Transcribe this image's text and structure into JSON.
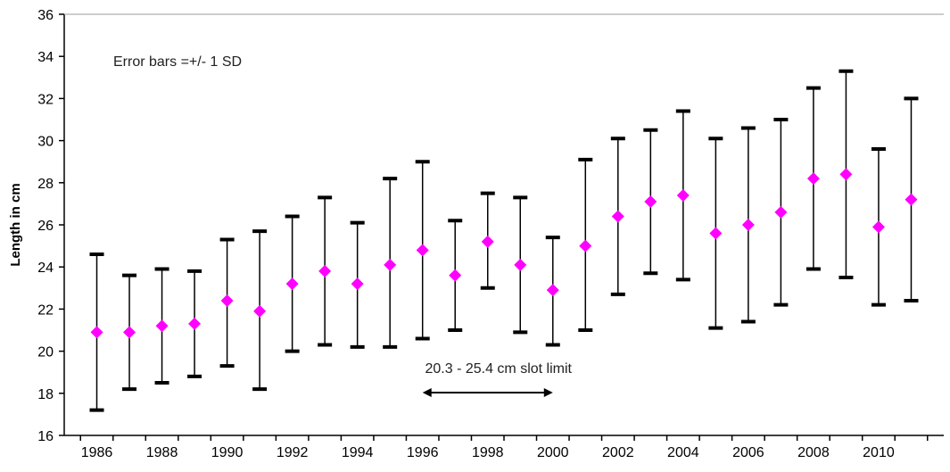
{
  "chart_data": {
    "type": "scatter",
    "ylabel": "Length in cm",
    "xlabel": "",
    "ylim": [
      16,
      36
    ],
    "yticks": [
      16,
      18,
      20,
      22,
      24,
      26,
      28,
      30,
      32,
      34,
      36
    ],
    "xtick_labels": [
      "1986",
      "1988",
      "1990",
      "1992",
      "1994",
      "1996",
      "1998",
      "2000",
      "2002",
      "2004",
      "2006",
      "2008",
      "2010"
    ],
    "grid": false,
    "x": [
      1986,
      1987,
      1988,
      1989,
      1990,
      1991,
      1992,
      1993,
      1994,
      1995,
      1996,
      1997,
      1998,
      1999,
      2000,
      2001,
      2002,
      2003,
      2004,
      2005,
      2006,
      2007,
      2008,
      2009,
      2010,
      2011
    ],
    "mean": [
      20.9,
      20.9,
      21.2,
      21.3,
      22.4,
      21.9,
      23.2,
      23.8,
      23.2,
      24.1,
      24.8,
      23.6,
      25.2,
      24.1,
      22.9,
      25.0,
      26.4,
      27.1,
      27.4,
      25.6,
      26.0,
      26.6,
      28.2,
      28.4,
      25.9,
      27.2
    ],
    "upper": [
      24.6,
      23.6,
      23.9,
      23.8,
      25.3,
      25.7,
      26.4,
      27.3,
      26.1,
      28.2,
      29.0,
      26.2,
      27.5,
      27.3,
      25.4,
      29.1,
      30.1,
      30.5,
      31.4,
      30.1,
      30.6,
      31.0,
      32.5,
      33.3,
      29.6,
      32.0
    ],
    "lower": [
      17.2,
      18.2,
      18.5,
      18.8,
      19.3,
      18.2,
      20.0,
      20.3,
      20.2,
      20.2,
      20.6,
      21.0,
      23.0,
      20.9,
      20.3,
      21.0,
      22.7,
      23.7,
      23.4,
      21.1,
      21.4,
      22.2,
      23.9,
      23.5,
      22.2,
      22.4
    ],
    "marker_color": "#ff00ff",
    "errorbar_color": "#000000",
    "annotations": {
      "error_note": "Error bars =+/- 1 SD",
      "slot_label": "20.3 - 25.4 cm slot limit",
      "slot_range_years": [
        1996,
        2000
      ]
    }
  }
}
